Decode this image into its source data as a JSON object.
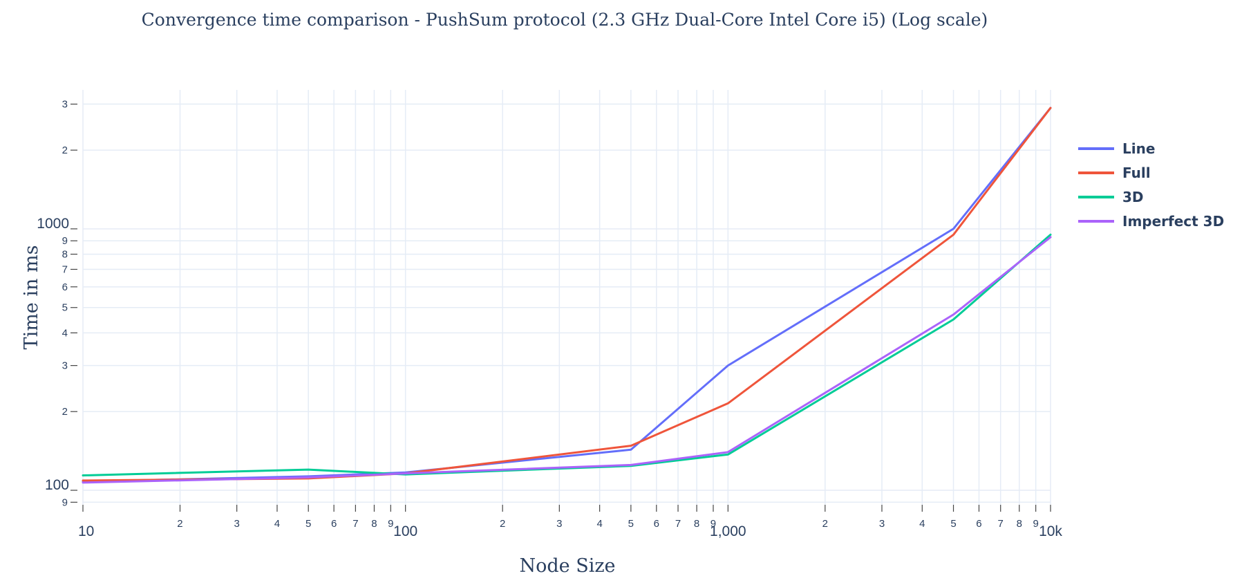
{
  "chart_data": {
    "type": "line",
    "title": "Convergence time comparison - PushSum protocol (2.3 GHz Dual-Core Intel Core i5) (Log scale)",
    "xlabel": "Node Size",
    "ylabel": "Time in ms",
    "x_scale": "log",
    "y_scale": "log",
    "xlim": [
      10,
      10000
    ],
    "ylim": [
      88,
      3400
    ],
    "grid": true,
    "legend_position": "right",
    "x": [
      10,
      50,
      100,
      500,
      1000,
      5000,
      10000
    ],
    "series": [
      {
        "name": "Line",
        "color": "#636efa",
        "values": [
          108,
          113,
          117,
          143,
          300,
          1000,
          2900
        ]
      },
      {
        "name": "Full",
        "color": "#ef553b",
        "values": [
          109,
          111,
          116,
          148,
          215,
          950,
          2900
        ]
      },
      {
        "name": "3D",
        "color": "#00cc96",
        "values": [
          114,
          120,
          115,
          124,
          137,
          450,
          950
        ]
      },
      {
        "name": "Imperfect 3D",
        "color": "#ab63fa",
        "values": [
          107,
          112,
          116,
          125,
          140,
          470,
          930
        ]
      }
    ],
    "x_ticks": {
      "major": [
        {
          "value": 10,
          "label": "10"
        },
        {
          "value": 100,
          "label": "100"
        },
        {
          "value": 1000,
          "label": "1,000"
        },
        {
          "value": 10000,
          "label": "10k"
        }
      ],
      "minor_labels": [
        "2",
        "3",
        "4",
        "5",
        "6",
        "7",
        "8",
        "9"
      ]
    },
    "y_ticks": {
      "major": [
        {
          "value": 100,
          "label": "100"
        },
        {
          "value": 1000,
          "label": "1000"
        }
      ],
      "minor": [
        {
          "value": 90,
          "label": "9"
        },
        {
          "value": 200,
          "label": "2"
        },
        {
          "value": 300,
          "label": "3"
        },
        {
          "value": 400,
          "label": "4"
        },
        {
          "value": 500,
          "label": "5"
        },
        {
          "value": 600,
          "label": "6"
        },
        {
          "value": 700,
          "label": "7"
        },
        {
          "value": 800,
          "label": "8"
        },
        {
          "value": 900,
          "label": "9"
        },
        {
          "value": 2000,
          "label": "2"
        },
        {
          "value": 3000,
          "label": "3"
        }
      ]
    }
  }
}
